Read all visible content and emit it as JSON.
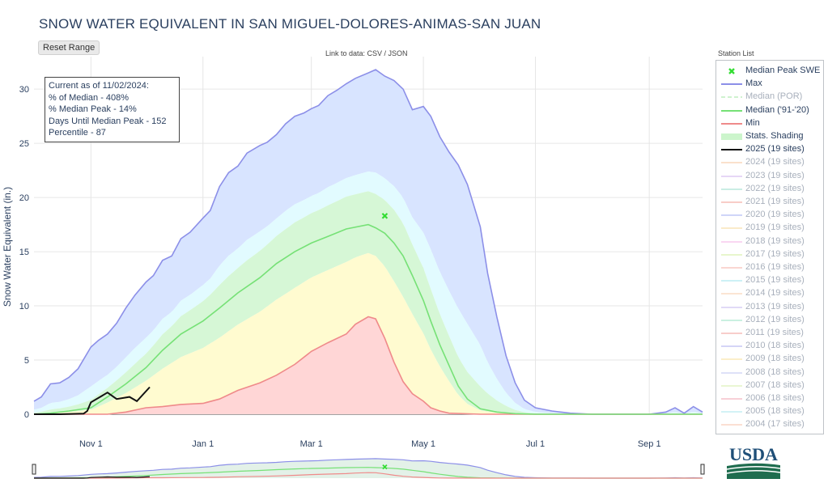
{
  "header": {
    "title": "SNOW WATER EQUIVALENT IN SAN MIGUEL-DOLORES-ANIMAS-SAN JUAN",
    "reset_label": "Reset Range",
    "link_text": "Link to data: CSV / JSON",
    "station_list_label": "Station List"
  },
  "infobox": {
    "lines": [
      "Current as of 11/02/2024:",
      "% of Median - 408%",
      "% Median Peak - 14%",
      "Days Until Median Peak - 152",
      "Percentile - 87"
    ]
  },
  "legend": {
    "items": [
      {
        "label": "Median Peak SWE",
        "kind": "marker",
        "color": "#33dd33",
        "muted": false
      },
      {
        "label": "Max",
        "kind": "line",
        "color": "#8c8fe8",
        "muted": false
      },
      {
        "label": "Median (POR)",
        "kind": "dash",
        "color": "#a8e8a8",
        "muted": true
      },
      {
        "label": "Median ('91-'20)",
        "kind": "line",
        "color": "#76e176",
        "muted": false
      },
      {
        "label": "Min",
        "kind": "line",
        "color": "#ef8a8a",
        "muted": false
      },
      {
        "label": "Stats. Shading",
        "kind": "band",
        "color": "#ccf5cc",
        "muted": false
      },
      {
        "label": "2025 (19 sites)",
        "kind": "line",
        "color": "#111111",
        "muted": false
      },
      {
        "label": "2024 (19 sites)",
        "kind": "line",
        "color": "#f6c9a3",
        "muted": true
      },
      {
        "label": "2023 (19 sites)",
        "kind": "line",
        "color": "#d3b8ef",
        "muted": true
      },
      {
        "label": "2022 (19 sites)",
        "kind": "line",
        "color": "#9fe0cf",
        "muted": true
      },
      {
        "label": "2021 (19 sites)",
        "kind": "line",
        "color": "#f4a59b",
        "muted": true
      },
      {
        "label": "2020 (19 sites)",
        "kind": "line",
        "color": "#a9b3f3",
        "muted": true
      },
      {
        "label": "2019 (19 sites)",
        "kind": "line",
        "color": "#f7dca0",
        "muted": true
      },
      {
        "label": "2018 (19 sites)",
        "kind": "line",
        "color": "#f6b8e9",
        "muted": true
      },
      {
        "label": "2017 (19 sites)",
        "kind": "line",
        "color": "#d7efa5",
        "muted": true
      },
      {
        "label": "2016 (19 sites)",
        "kind": "line",
        "color": "#f7b5ad",
        "muted": true
      },
      {
        "label": "2015 (19 sites)",
        "kind": "line",
        "color": "#a5e7ef",
        "muted": true
      },
      {
        "label": "2014 (19 sites)",
        "kind": "line",
        "color": "#f8d0b0",
        "muted": true
      },
      {
        "label": "2013 (19 sites)",
        "kind": "line",
        "color": "#c9bdf1",
        "muted": true
      },
      {
        "label": "2012 (19 sites)",
        "kind": "line",
        "color": "#9fe5c9",
        "muted": true
      },
      {
        "label": "2011 (19 sites)",
        "kind": "line",
        "color": "#f3a69f",
        "muted": true
      },
      {
        "label": "2010 (18 sites)",
        "kind": "line",
        "color": "#b3b4f2",
        "muted": true
      },
      {
        "label": "2009 (18 sites)",
        "kind": "line",
        "color": "#f8e2a0",
        "muted": true
      },
      {
        "label": "2008 (18 sites)",
        "kind": "line",
        "color": "#c4c9f3",
        "muted": true
      },
      {
        "label": "2007 (18 sites)",
        "kind": "line",
        "color": "#d9f0b0",
        "muted": true
      },
      {
        "label": "2006 (18 sites)",
        "kind": "line",
        "color": "#f4aab8",
        "muted": true
      },
      {
        "label": "2005 (18 sites)",
        "kind": "line",
        "color": "#b0e8ef",
        "muted": true
      },
      {
        "label": "2004 (17 sites)",
        "kind": "line",
        "color": "#f8c8b0",
        "muted": true
      }
    ]
  },
  "logo": {
    "text": "USDA"
  },
  "colors": {
    "max_band": "#d8e4ff",
    "p90_band": "#e2fbff",
    "p70_band": "#d6f7d6",
    "p30_band": "#fffbd0",
    "min_band": "#ffd6d6",
    "max_line": "#8c8fe8",
    "median_line": "#76e176",
    "min_line": "#ef8a8a",
    "current_line": "#111111",
    "peak_marker": "#33dd33",
    "grid": "#e6e6e6"
  },
  "chart_data": {
    "type": "area",
    "title": "SNOW WATER EQUIVALENT IN SAN MIGUEL-DOLORES-ANIMAS-SAN JUAN",
    "xlabel": "",
    "ylabel": "Snow Water Equivalent (in.)",
    "ylim": [
      0,
      33
    ],
    "x_tick_labels": [
      "Nov 1",
      "Jan 1",
      "Mar 1",
      "May 1",
      "Jul 1",
      "Sep 1"
    ],
    "y_ticks": [
      0,
      5,
      10,
      15,
      20,
      25,
      30
    ],
    "grid": true,
    "legend_placement": "right",
    "x_unit_note": "x values are dates",
    "series": [
      {
        "name": "Max",
        "x": [
          "10/01",
          "10/05",
          "10/10",
          "10/15",
          "10/20",
          "10/25",
          "11/01",
          "11/05",
          "11/10",
          "11/15",
          "11/20",
          "11/25",
          "12/01",
          "12/05",
          "12/10",
          "12/15",
          "12/20",
          "12/25",
          "01/01",
          "01/05",
          "01/10",
          "01/15",
          "01/20",
          "01/25",
          "02/01",
          "02/05",
          "02/10",
          "02/15",
          "02/20",
          "02/25",
          "03/01",
          "03/05",
          "03/10",
          "03/15",
          "03/20",
          "03/25",
          "04/01",
          "04/05",
          "04/10",
          "04/15",
          "04/20",
          "04/25",
          "05/01",
          "05/05",
          "05/10",
          "05/15",
          "05/20",
          "05/25",
          "06/01",
          "06/05",
          "06/10",
          "06/15",
          "06/20",
          "06/25",
          "07/01",
          "07/10",
          "07/20",
          "08/01",
          "08/15",
          "09/01",
          "09/10",
          "09/15",
          "09/20",
          "09/25",
          "09/30"
        ],
        "values": [
          1.2,
          1.6,
          2.8,
          2.9,
          3.4,
          4.2,
          6.2,
          6.8,
          7.4,
          8.4,
          9.8,
          11.0,
          12.2,
          12.8,
          14.2,
          14.6,
          16.2,
          16.8,
          18.1,
          18.8,
          21.0,
          22.3,
          22.9,
          24.1,
          24.8,
          25.1,
          25.8,
          26.8,
          27.5,
          27.8,
          28.2,
          28.5,
          29.4,
          29.9,
          30.5,
          31.0,
          31.5,
          31.8,
          31.2,
          30.8,
          30.0,
          28.1,
          28.4,
          27.5,
          25.6,
          24.2,
          23.0,
          21.2,
          17.3,
          13.0,
          9.0,
          5.4,
          2.9,
          1.3,
          0.6,
          0.3,
          0.1,
          0.0,
          0.0,
          0.0,
          0.2,
          0.6,
          0.1,
          0.7,
          0.2
        ]
      },
      {
        "name": "Median ('91-'20)",
        "x": [
          "10/01",
          "10/10",
          "10/20",
          "11/01",
          "11/10",
          "11/20",
          "12/01",
          "12/10",
          "12/20",
          "01/01",
          "01/10",
          "01/20",
          "02/01",
          "02/10",
          "02/20",
          "03/01",
          "03/10",
          "03/20",
          "04/01",
          "04/05",
          "04/10",
          "04/15",
          "04/20",
          "04/25",
          "05/01",
          "05/05",
          "05/10",
          "05/15",
          "05/20",
          "05/25",
          "06/01",
          "06/10",
          "06/20",
          "07/01",
          "07/15",
          "08/01",
          "09/30"
        ],
        "values": [
          0.0,
          0.1,
          0.3,
          0.6,
          1.6,
          2.8,
          4.3,
          5.9,
          7.4,
          8.6,
          9.8,
          11.2,
          12.6,
          13.9,
          15.0,
          15.8,
          16.4,
          17.1,
          17.5,
          17.2,
          16.7,
          15.8,
          14.6,
          12.8,
          10.5,
          8.6,
          6.4,
          4.5,
          2.6,
          1.4,
          0.5,
          0.2,
          0.05,
          0.0,
          0.0,
          0.0,
          0.0
        ]
      },
      {
        "name": "Min",
        "x": [
          "10/01",
          "11/10",
          "11/20",
          "12/01",
          "12/10",
          "12/20",
          "01/01",
          "01/10",
          "01/20",
          "02/01",
          "02/10",
          "02/20",
          "03/01",
          "03/10",
          "03/20",
          "03/25",
          "04/01",
          "04/05",
          "04/10",
          "04/15",
          "04/20",
          "04/25",
          "05/01",
          "05/05",
          "05/10",
          "05/15",
          "06/01",
          "09/30"
        ],
        "values": [
          0.0,
          0.0,
          0.2,
          0.6,
          0.7,
          0.9,
          1.0,
          1.4,
          2.2,
          2.9,
          3.6,
          4.6,
          5.8,
          6.6,
          7.4,
          8.3,
          9.0,
          8.8,
          7.0,
          4.8,
          3.0,
          1.9,
          1.2,
          0.6,
          0.3,
          0.1,
          0.0,
          0.0
        ]
      },
      {
        "name": "2025 (19 sites)",
        "x": [
          "10/01",
          "10/15",
          "10/28",
          "10/30",
          "11/01",
          "11/10",
          "11/15",
          "11/22",
          "11/26",
          "12/03"
        ],
        "values": [
          0.0,
          0.0,
          0.05,
          0.3,
          1.1,
          2.0,
          1.4,
          1.6,
          1.2,
          2.5
        ]
      }
    ],
    "median_peak": {
      "x": "04/10",
      "y": 18.3
    },
    "stats_shading_bands": [
      "Max",
      "90%",
      "70%",
      "Median",
      "30%",
      "10%",
      "Min"
    ]
  }
}
